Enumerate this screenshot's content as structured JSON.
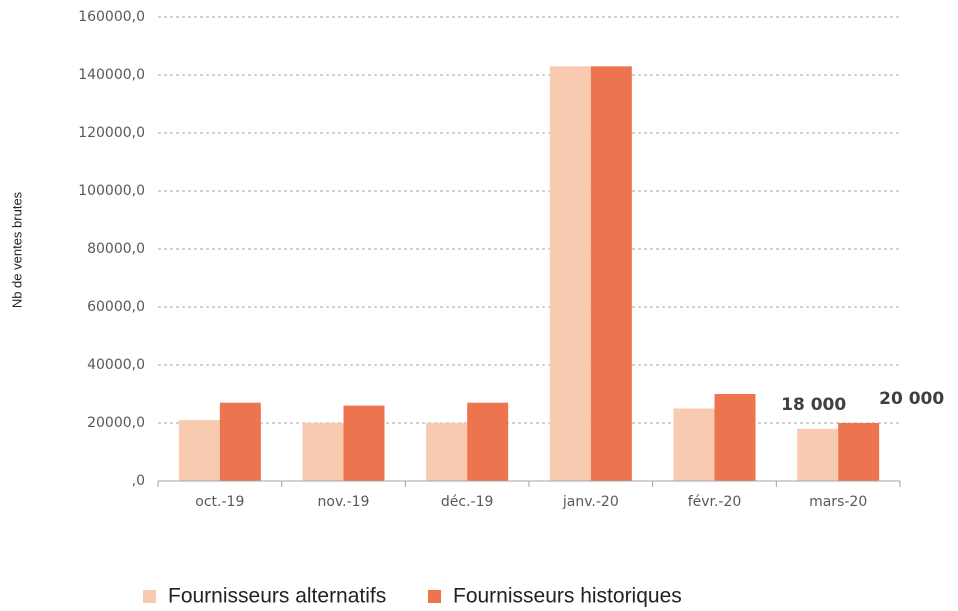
{
  "chart_data": {
    "type": "bar",
    "y_label": "Nb de ventes brutes",
    "categories": [
      "oct.-19",
      "nov.-19",
      "déc.-19",
      "janv.-20",
      "févr.-20",
      "mars-20"
    ],
    "series": [
      {
        "name": "Fournisseurs alternatifs",
        "color": "#f8cbb0",
        "values": [
          21000,
          20000,
          20000,
          143000,
          25000,
          18000
        ],
        "value_labels": [
          null,
          null,
          null,
          null,
          null,
          "18 000"
        ]
      },
      {
        "name": "Fournisseurs historiques",
        "color": "#ec7550",
        "values": [
          27000,
          26000,
          27000,
          143000,
          30000,
          20000
        ],
        "value_labels": [
          null,
          null,
          null,
          null,
          null,
          "20 000"
        ]
      }
    ],
    "ylim": [
      0,
      160000
    ],
    "yticks": [
      {
        "value": 0,
        "label": ",0"
      },
      {
        "value": 20000,
        "label": "20000,0"
      },
      {
        "value": 40000,
        "label": "40000,0"
      },
      {
        "value": 60000,
        "label": "60000,0"
      },
      {
        "value": 80000,
        "label": "80000,0"
      },
      {
        "value": 100000,
        "label": "100000,0"
      },
      {
        "value": 120000,
        "label": "120000,0"
      },
      {
        "value": 140000,
        "label": "140000,0"
      },
      {
        "value": 160000,
        "label": "160000,0"
      }
    ],
    "grid": true,
    "legend": "bottom"
  }
}
